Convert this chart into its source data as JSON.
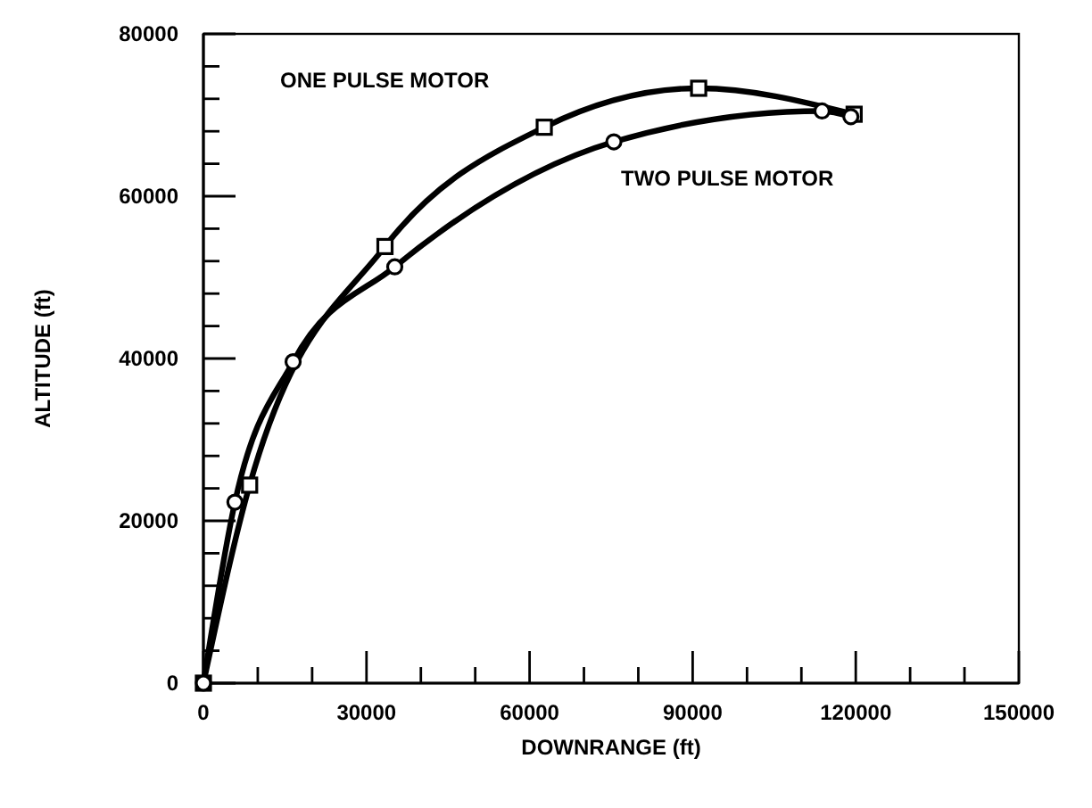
{
  "chart_data": {
    "type": "line",
    "xlabel": "DOWNRANGE (ft)",
    "ylabel": "ALTITUDE (ft)",
    "xlim": [
      0,
      150000
    ],
    "ylim": [
      0,
      80000
    ],
    "xticks": [
      0,
      {
        "value": 10000,
        "label": null
      },
      {
        "value": 20000,
        "label": null
      },
      30000,
      {
        "value": 40000,
        "label": null
      },
      {
        "value": 50000,
        "label": null
      },
      60000,
      {
        "value": 70000,
        "label": null
      },
      {
        "value": 80000,
        "label": null
      },
      90000,
      {
        "value": 100000,
        "label": null
      },
      {
        "value": 110000,
        "label": null
      },
      120000,
      {
        "value": 130000,
        "label": null
      },
      {
        "value": 140000,
        "label": null
      },
      150000
    ],
    "yticks": [
      0,
      {
        "value": 4000,
        "label": null
      },
      {
        "value": 8000,
        "label": null
      },
      {
        "value": 12000,
        "label": null
      },
      {
        "value": 16000,
        "label": null
      },
      20000,
      {
        "value": 24000,
        "label": null
      },
      {
        "value": 28000,
        "label": null
      },
      {
        "value": 32000,
        "label": null
      },
      {
        "value": 36000,
        "label": null
      },
      40000,
      {
        "value": 44000,
        "label": null
      },
      {
        "value": 48000,
        "label": null
      },
      {
        "value": 52000,
        "label": null
      },
      {
        "value": 56000,
        "label": null
      },
      60000,
      {
        "value": 64000,
        "label": null
      },
      {
        "value": 68000,
        "label": null
      },
      {
        "value": 72000,
        "label": null
      },
      {
        "value": 76000,
        "label": null
      },
      80000
    ],
    "grid": false,
    "line_style": "solid",
    "series": [
      {
        "name": "ONE PULSE MOTOR",
        "color": "#000000",
        "marker": "square",
        "x": [
          0,
          8500,
          33400,
          62700,
          91100,
          119700
        ],
        "values": [
          0,
          24400,
          53800,
          68500,
          73300,
          70100
        ]
      },
      {
        "name": "TWO PULSE MOTOR",
        "color": "#000000",
        "marker": "circle",
        "x": [
          0,
          5800,
          16500,
          35200,
          75500,
          113800,
          119100
        ],
        "values": [
          0,
          22300,
          39600,
          51300,
          66700,
          70500,
          69800
        ]
      }
    ]
  }
}
